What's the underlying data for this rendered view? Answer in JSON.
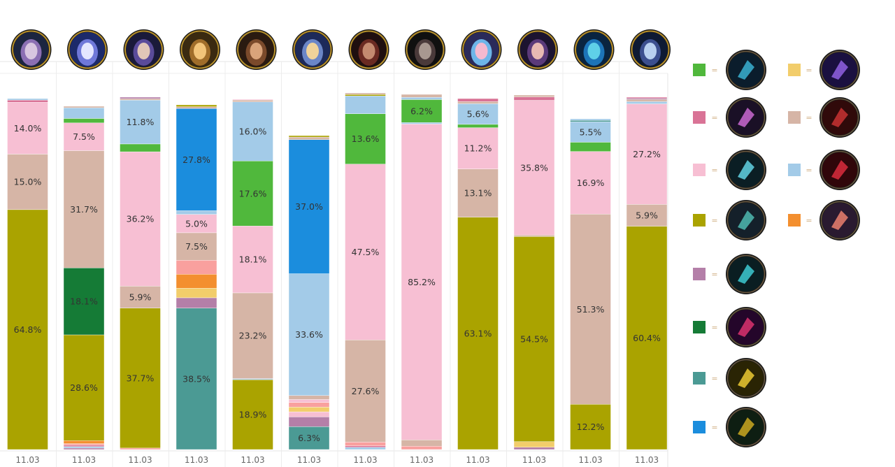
{
  "chart_data": {
    "type": "bar",
    "stacked": true,
    "orientation": "vertical",
    "categories": [
      "11.03",
      "11.03",
      "11.03",
      "11.03",
      "11.03",
      "11.03",
      "11.03",
      "11.03",
      "11.03",
      "11.03",
      "11.03",
      "11.03"
    ],
    "column_icons": [
      "champion-portrait-1",
      "champion-portrait-2",
      "champion-portrait-3",
      "champion-portrait-4",
      "champion-portrait-5",
      "champion-portrait-6",
      "champion-portrait-7",
      "champion-portrait-8",
      "champion-portrait-9",
      "champion-portrait-10",
      "champion-portrait-11",
      "champion-portrait-12"
    ],
    "series_keys": [
      "green",
      "yellow",
      "pink",
      "tan",
      "light_pink",
      "light_blue",
      "olive",
      "orange",
      "mauve",
      "dark_green",
      "teal",
      "blue",
      "salmon"
    ],
    "colors": {
      "green": "#50b83c",
      "yellow": "#f2cd6b",
      "pink": "#d97396",
      "tan": "#d6b5a6",
      "light_pink": "#f7bfd3",
      "light_blue": "#a3cbe8",
      "olive": "#aaa300",
      "orange": "#f38f2f",
      "mauve": "#b47fa8",
      "dark_green": "#157b36",
      "teal": "#4b9a94",
      "blue": "#1b8ddd",
      "salmon": "#f9a09e"
    },
    "columns": [
      {
        "segments": [
          [
            "olive",
            64.8
          ],
          [
            "tan",
            15.0
          ],
          [
            "light_pink",
            14.0
          ],
          [
            "pink",
            0.6
          ],
          [
            "light_blue",
            0.4
          ]
        ]
      },
      {
        "segments": [
          [
            "mauve",
            0.4
          ],
          [
            "light_blue",
            0.4
          ],
          [
            "pink",
            0.4
          ],
          [
            "salmon",
            0.4
          ],
          [
            "orange",
            0.8
          ],
          [
            "olive",
            28.6
          ],
          [
            "dark_green",
            18.1
          ],
          [
            "tan",
            31.7
          ],
          [
            "light_pink",
            7.5
          ],
          [
            "green",
            1.2
          ],
          [
            "light_blue",
            2.9
          ],
          [
            "tan",
            0.4
          ]
        ]
      },
      {
        "segments": [
          [
            "salmon",
            0.4
          ],
          [
            "olive",
            37.7
          ],
          [
            "tan",
            5.9
          ],
          [
            "light_pink",
            36.2
          ],
          [
            "green",
            2.1
          ],
          [
            "light_blue",
            11.8
          ],
          [
            "tan",
            0.4
          ],
          [
            "mauve",
            0.4
          ]
        ]
      },
      {
        "segments": [
          [
            "teal",
            38.5
          ],
          [
            "mauve",
            2.8
          ],
          [
            "yellow",
            2.6
          ],
          [
            "orange",
            3.8
          ],
          [
            "salmon",
            3.8
          ],
          [
            "tan",
            7.5
          ],
          [
            "light_pink",
            5.0
          ],
          [
            "light_blue",
            1.0
          ],
          [
            "blue",
            27.8
          ],
          [
            "tan",
            0.5
          ],
          [
            "olive",
            0.5
          ]
        ]
      },
      {
        "segments": [
          [
            "olive",
            18.9
          ],
          [
            "light_blue",
            0.3
          ],
          [
            "tan",
            23.2
          ],
          [
            "light_pink",
            18.1
          ],
          [
            "green",
            17.6
          ],
          [
            "light_blue",
            16.0
          ],
          [
            "tan",
            0.5
          ],
          [
            "light_pink",
            0.2
          ]
        ]
      },
      {
        "segments": [
          [
            "teal",
            6.3
          ],
          [
            "mauve",
            2.7
          ],
          [
            "light_pink",
            1.4
          ],
          [
            "yellow",
            1.3
          ],
          [
            "salmon",
            1.3
          ],
          [
            "light_pink",
            0.8
          ],
          [
            "tan",
            1.1
          ],
          [
            "light_blue",
            33.6
          ],
          [
            "blue",
            37.0
          ],
          [
            "tan",
            0.7
          ],
          [
            "olive",
            0.4
          ]
        ]
      },
      {
        "segments": [
          [
            "light_blue",
            0.6
          ],
          [
            "pink",
            0.4
          ],
          [
            "salmon",
            1.0
          ],
          [
            "tan",
            27.6
          ],
          [
            "light_pink",
            47.5
          ],
          [
            "green",
            13.6
          ],
          [
            "light_blue",
            4.8
          ],
          [
            "olive",
            0.4
          ],
          [
            "tan",
            0.4
          ]
        ]
      },
      {
        "segments": [
          [
            "salmon",
            0.9
          ],
          [
            "tan",
            1.7
          ],
          [
            "light_pink",
            85.2
          ],
          [
            "light_blue",
            0.4
          ],
          [
            "green",
            6.2
          ],
          [
            "light_blue",
            0.6
          ],
          [
            "tan",
            0.8
          ]
        ]
      },
      {
        "segments": [
          [
            "olive",
            63.1
          ],
          [
            "tan",
            13.1
          ],
          [
            "light_pink",
            11.2
          ],
          [
            "green",
            0.9
          ],
          [
            "light_blue",
            5.6
          ],
          [
            "tan",
            0.6
          ],
          [
            "pink",
            0.8
          ]
        ]
      },
      {
        "segments": [
          [
            "mauve",
            0.6
          ],
          [
            "yellow",
            1.5
          ],
          [
            "olive",
            54.5
          ],
          [
            "tan",
            0.4
          ],
          [
            "light_pink",
            35.8
          ],
          [
            "pink",
            0.9
          ],
          [
            "tan",
            0.5
          ]
        ]
      },
      {
        "segments": [
          [
            "olive",
            12.2
          ],
          [
            "tan",
            51.3
          ],
          [
            "light_pink",
            16.9
          ],
          [
            "green",
            2.5
          ],
          [
            "light_blue",
            5.5
          ],
          [
            "teal",
            0.4
          ],
          [
            "light_blue",
            0.4
          ]
        ]
      },
      {
        "segments": [
          [
            "olive",
            60.4
          ],
          [
            "tan",
            5.9
          ],
          [
            "light_pink",
            27.2
          ],
          [
            "light_blue",
            0.6
          ],
          [
            "tan",
            0.6
          ],
          [
            "mauve",
            0.3
          ],
          [
            "pink",
            0.3
          ]
        ]
      }
    ],
    "legend": [
      {
        "color_key": "green",
        "icon": "item-icon-1"
      },
      {
        "color_key": "yellow",
        "icon": "item-icon-2"
      },
      {
        "color_key": "pink",
        "icon": "item-icon-3"
      },
      {
        "color_key": "tan",
        "icon": "item-icon-4"
      },
      {
        "color_key": "light_pink",
        "icon": "item-icon-5"
      },
      {
        "color_key": "light_blue",
        "icon": "item-icon-6"
      },
      {
        "color_key": "olive",
        "icon": "item-icon-7"
      },
      {
        "color_key": "orange",
        "icon": "item-icon-8"
      },
      {
        "color_key": "mauve",
        "icon": "item-icon-9"
      },
      {
        "color_key": "dark_green",
        "icon": "item-icon-10"
      },
      {
        "color_key": "teal",
        "icon": "item-icon-11"
      },
      {
        "color_key": "blue",
        "icon": "item-icon-12"
      }
    ],
    "legend_symbol": "=",
    "legend_placement": "right",
    "grid": false,
    "ylim": [
      0,
      100
    ],
    "title": "",
    "xlabel": "",
    "ylabel": ""
  }
}
